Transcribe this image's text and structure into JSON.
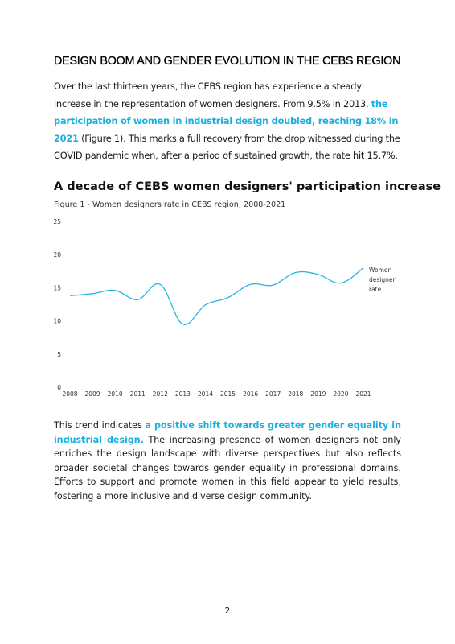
{
  "document": {
    "heading": "DESIGN BOOM AND GENDER EVOLUTION IN THE CEBS REGION",
    "intro": {
      "part1": "Over the last thirteen years, the CEBS region has experience a steady increase in the representation of women designers. From 9.5% in 2013, ",
      "highlight": "the participation of women in industrial design doubled, reaching 18% in 2021",
      "part2": " (Figure 1). This marks a full recovery from the drop witnessed during the COVID pandemic when, after a period of sustained growth, the rate hit 15.7%."
    },
    "figure_title": "A decade of CEBS women designers' participation increase",
    "figure_caption": "Figure 1 - Women designers rate in CEBS region, 2008-2021",
    "conclusion": {
      "part1": "This trend indicates ",
      "highlight": "a positive shift towards greater gender equality in industrial design.",
      "part2": " The increasing presence of women designers not only enriches the design landscape with diverse perspectives but also reflects broader societal changes towards gender equality in professional domains. Efforts to support and promote women in this field appear to yield results, fostering a more inclusive and diverse design community."
    },
    "page_number": "2"
  },
  "colors": {
    "accent": "#1ab0df",
    "line": "#29b4e2"
  },
  "chart_data": {
    "type": "line",
    "title": "",
    "xlabel": "",
    "ylabel": "",
    "x": [
      "2008",
      "2009",
      "2010",
      "2011",
      "2012",
      "2013",
      "2014",
      "2015",
      "2016",
      "2017",
      "2018",
      "2019",
      "2020",
      "2021"
    ],
    "series": [
      {
        "name": "Women designer rate",
        "values": [
          13.8,
          14.1,
          14.6,
          13.2,
          15.5,
          9.5,
          12.4,
          13.5,
          15.5,
          15.4,
          17.3,
          17.0,
          15.7,
          18.0
        ]
      }
    ],
    "ylim": [
      0,
      25
    ],
    "yticks": [
      "0",
      "5",
      "10",
      "15",
      "20",
      "25"
    ],
    "grid": false,
    "legend": "right",
    "legend_lines": [
      "Women",
      "designer",
      "rate"
    ]
  }
}
